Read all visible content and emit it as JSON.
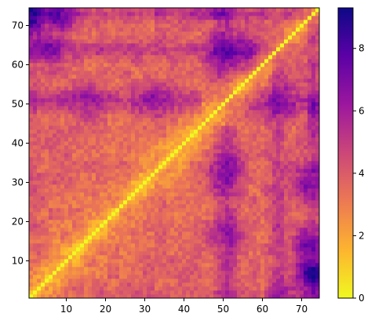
{
  "chart_data": {
    "type": "heatmap",
    "title": "",
    "xlabel": "",
    "ylabel": "",
    "x_range": [
      1,
      74
    ],
    "y_range": [
      1,
      74
    ],
    "x_ticks": [
      10,
      20,
      30,
      40,
      50,
      60,
      70
    ],
    "y_ticks": [
      10,
      20,
      30,
      40,
      50,
      60,
      70
    ],
    "x_tick_labels": [
      "10",
      "20",
      "30",
      "40",
      "50",
      "60",
      "70"
    ],
    "y_tick_labels": [
      "10",
      "20",
      "30",
      "40",
      "50",
      "60",
      "70"
    ],
    "colormap": "plasma_r",
    "color_range": [
      0,
      9.3
    ],
    "colorbar_ticks": [
      0,
      2,
      4,
      6,
      8
    ],
    "colorbar_tick_labels": [
      "0",
      "2",
      "4",
      "6",
      "8"
    ],
    "colorbar_stops": [
      "#f0f921",
      "#fdb42f",
      "#ed7953",
      "#cc4778",
      "#9c179e",
      "#5c01a6",
      "#0d0887"
    ],
    "diagonal_value": 0,
    "grid": false,
    "values_description_anchor_regions": [
      {
        "i": 1,
        "j": 74,
        "value": 9.0
      },
      {
        "i": 1,
        "j": 72,
        "value": 8.5
      },
      {
        "i": 6,
        "j": 64,
        "value": 6.8
      },
      {
        "i": 8,
        "j": 73,
        "value": 7.8
      },
      {
        "i": 15,
        "j": 51,
        "value": 5.8
      },
      {
        "i": 33,
        "j": 51,
        "value": 6.2
      },
      {
        "i": 34,
        "j": 51,
        "value": 6.0
      },
      {
        "i": 50,
        "j": 63,
        "value": 7.2
      },
      {
        "i": 50,
        "j": 32,
        "value": 6.5
      },
      {
        "i": 51,
        "j": 34,
        "value": 6.8
      },
      {
        "i": 51,
        "j": 17,
        "value": 6.0
      },
      {
        "i": 52,
        "j": 63,
        "value": 7.5
      },
      {
        "i": 55,
        "j": 63,
        "value": 7.0
      },
      {
        "i": 64,
        "j": 51,
        "value": 6.5
      },
      {
        "i": 73,
        "j": 7,
        "value": 9.0
      },
      {
        "i": 72,
        "j": 14,
        "value": 7.5
      },
      {
        "i": 72,
        "j": 30,
        "value": 7.2
      }
    ]
  }
}
